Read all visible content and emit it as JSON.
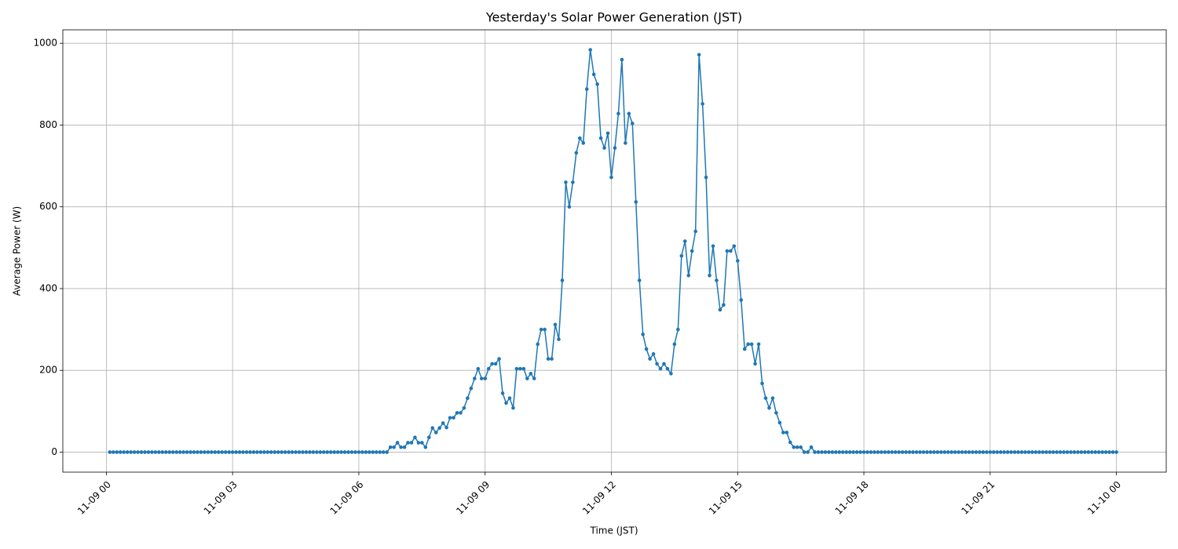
{
  "chart_data": {
    "type": "line",
    "title": "Yesterday's Solar Power Generation (JST)",
    "x_label": "Time (JST)",
    "y_label": "Average Power (W)",
    "xlim": [
      -62,
      1511
    ],
    "xticks": [
      {
        "value": 0,
        "label": "11-09 00"
      },
      {
        "value": 180,
        "label": "11-09 03"
      },
      {
        "value": 360,
        "label": "11-09 06"
      },
      {
        "value": 540,
        "label": "11-09 09"
      },
      {
        "value": 720,
        "label": "11-09 12"
      },
      {
        "value": 900,
        "label": "11-09 15"
      },
      {
        "value": 1080,
        "label": "11-09 18"
      },
      {
        "value": 1260,
        "label": "11-09 21"
      },
      {
        "value": 1440,
        "label": "11-10 00"
      }
    ],
    "ylim": [
      -49,
      1033
    ],
    "yticks": [
      0,
      200,
      400,
      600,
      800,
      1000
    ],
    "grid": true,
    "x": [
      5,
      10,
      15,
      20,
      25,
      30,
      35,
      40,
      45,
      50,
      55,
      60,
      65,
      70,
      75,
      80,
      85,
      90,
      95,
      100,
      105,
      110,
      115,
      120,
      125,
      130,
      135,
      140,
      145,
      150,
      155,
      160,
      165,
      170,
      175,
      180,
      185,
      190,
      195,
      200,
      205,
      210,
      215,
      220,
      225,
      230,
      235,
      240,
      245,
      250,
      255,
      260,
      265,
      270,
      275,
      280,
      285,
      290,
      295,
      300,
      305,
      310,
      315,
      320,
      325,
      330,
      335,
      340,
      345,
      350,
      355,
      360,
      365,
      370,
      375,
      380,
      385,
      390,
      395,
      400,
      405,
      410,
      415,
      420,
      425,
      430,
      435,
      440,
      445,
      450,
      455,
      460,
      465,
      470,
      475,
      480,
      485,
      490,
      495,
      500,
      505,
      510,
      515,
      520,
      525,
      530,
      535,
      540,
      545,
      550,
      555,
      560,
      565,
      570,
      575,
      580,
      585,
      590,
      595,
      600,
      605,
      610,
      615,
      620,
      625,
      630,
      635,
      640,
      645,
      650,
      655,
      660,
      665,
      670,
      675,
      680,
      685,
      690,
      695,
      700,
      705,
      710,
      715,
      720,
      725,
      730,
      735,
      740,
      745,
      750,
      755,
      760,
      765,
      770,
      775,
      780,
      785,
      790,
      795,
      800,
      805,
      810,
      815,
      820,
      825,
      830,
      835,
      840,
      845,
      850,
      855,
      860,
      865,
      870,
      875,
      880,
      885,
      890,
      895,
      900,
      905,
      910,
      915,
      920,
      925,
      930,
      935,
      940,
      945,
      950,
      955,
      960,
      965,
      970,
      975,
      980,
      985,
      990,
      995,
      1000,
      1005,
      1010,
      1015,
      1020,
      1025,
      1030,
      1035,
      1040,
      1045,
      1050,
      1055,
      1060,
      1065,
      1070,
      1075,
      1080,
      1085,
      1090,
      1095,
      1100,
      1105,
      1110,
      1115,
      1120,
      1125,
      1130,
      1135,
      1140,
      1145,
      1150,
      1155,
      1160,
      1165,
      1170,
      1175,
      1180,
      1185,
      1190,
      1195,
      1200,
      1205,
      1210,
      1215,
      1220,
      1225,
      1230,
      1235,
      1240,
      1245,
      1250,
      1255,
      1260,
      1265,
      1270,
      1275,
      1280,
      1285,
      1290,
      1295,
      1300,
      1305,
      1310,
      1315,
      1320,
      1325,
      1330,
      1335,
      1340,
      1345,
      1350,
      1355,
      1360,
      1365,
      1370,
      1375,
      1380,
      1385,
      1390,
      1395,
      1400,
      1405,
      1410,
      1415,
      1420,
      1425,
      1430,
      1435,
      1440
    ],
    "series": [
      {
        "color": "#1f77b4",
        "values": [
          0,
          0,
          0,
          0,
          0,
          0,
          0,
          0,
          0,
          0,
          0,
          0,
          0,
          0,
          0,
          0,
          0,
          0,
          0,
          0,
          0,
          0,
          0,
          0,
          0,
          0,
          0,
          0,
          0,
          0,
          0,
          0,
          0,
          0,
          0,
          0,
          0,
          0,
          0,
          0,
          0,
          0,
          0,
          0,
          0,
          0,
          0,
          0,
          0,
          0,
          0,
          0,
          0,
          0,
          0,
          0,
          0,
          0,
          0,
          0,
          0,
          0,
          0,
          0,
          0,
          0,
          0,
          0,
          0,
          0,
          0,
          0,
          0,
          0,
          0,
          0,
          0,
          0,
          0,
          0,
          12,
          12,
          23,
          12,
          12,
          23,
          23,
          36,
          23,
          23,
          12,
          36,
          59,
          48,
          59,
          71,
          60,
          84,
          84,
          96,
          96,
          108,
          132,
          156,
          180,
          204,
          180,
          180,
          204,
          216,
          216,
          228,
          144,
          120,
          132,
          108,
          204,
          204,
          204,
          180,
          192,
          180,
          264,
          300,
          300,
          228,
          228,
          312,
          276,
          420,
          660,
          600,
          660,
          732,
          768,
          756,
          888,
          984,
          924,
          900,
          768,
          744,
          780,
          672,
          744,
          828,
          960,
          756,
          828,
          804,
          612,
          420,
          288,
          252,
          228,
          240,
          216,
          204,
          216,
          204,
          192,
          264,
          300,
          480,
          516,
          432,
          492,
          540,
          972,
          852,
          672,
          432,
          504,
          420,
          348,
          360,
          492,
          492,
          504,
          468,
          372,
          252,
          264,
          264,
          216,
          264,
          168,
          132,
          108,
          132,
          96,
          72,
          48,
          48,
          24,
          12,
          12,
          12,
          0,
          0,
          12,
          0,
          0,
          0,
          0,
          0,
          0,
          0,
          0,
          0,
          0,
          0,
          0,
          0,
          0,
          0,
          0,
          0,
          0,
          0,
          0,
          0,
          0,
          0,
          0,
          0,
          0,
          0,
          0,
          0,
          0,
          0,
          0,
          0,
          0,
          0,
          0,
          0,
          0,
          0,
          0,
          0,
          0,
          0,
          0,
          0,
          0,
          0,
          0,
          0,
          0,
          0,
          0,
          0,
          0,
          0,
          0,
          0,
          0,
          0,
          0,
          0,
          0,
          0,
          0,
          0,
          0,
          0,
          0,
          0,
          0,
          0,
          0,
          0,
          0,
          0,
          0,
          0,
          0,
          0,
          0,
          0,
          0,
          0,
          0,
          0,
          0,
          0
        ]
      }
    ]
  }
}
